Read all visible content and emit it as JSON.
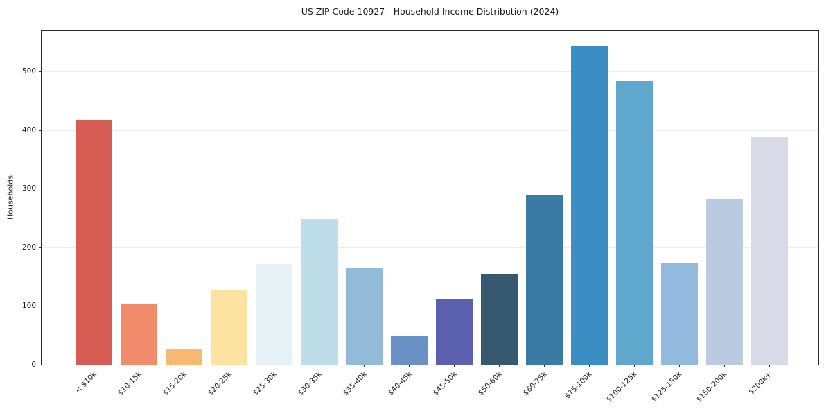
{
  "chart_data": {
    "type": "bar",
    "title": "US ZIP Code 10927 - Household Income Distribution (2024)",
    "xlabel": "",
    "ylabel": "Households",
    "categories": [
      "< $10k",
      "$10-15k",
      "$15-20k",
      "$20-25k",
      "$25-30k",
      "$30-35k",
      "$35-40k",
      "$40-45k",
      "$45-50k",
      "$50-60k",
      "$60-75k",
      "$75-100k",
      "$100-125k",
      "$125-150k",
      "$150-200k",
      "$200k+"
    ],
    "values": [
      418,
      103,
      27,
      126,
      171,
      248,
      165,
      48,
      111,
      155,
      290,
      544,
      484,
      174,
      283,
      388
    ],
    "bar_colors": [
      "#d75c53",
      "#f28b6b",
      "#fab873",
      "#fce3a1",
      "#e5f1f4",
      "#bddee8",
      "#93bbd9",
      "#6991c6",
      "#5a5fae",
      "#35596f",
      "#3a7ba4",
      "#3b8ec4",
      "#60a7cd",
      "#93badc",
      "#bacae1",
      "#d8dbe7"
    ],
    "ylim": [
      0,
      570
    ],
    "yticks": [
      0,
      100,
      200,
      300,
      400,
      500
    ],
    "grid": "horizontal",
    "grid_color": "#ececec",
    "spine_color": "#2b2b2b",
    "background_color": "#ffffff",
    "legend": "none"
  }
}
